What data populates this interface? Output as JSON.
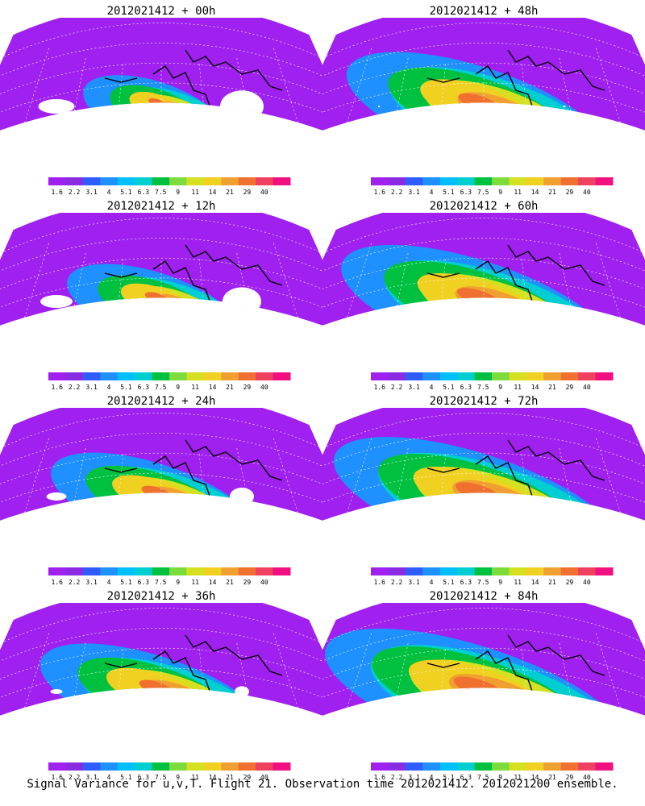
{
  "panels": [
    {
      "title": "2012021412 + 00h",
      "intensity": 0.15,
      "blank": 0.9
    },
    {
      "title": "2012021412 + 12h",
      "intensity": 0.3,
      "blank": 0.8
    },
    {
      "title": "2012021412 + 24h",
      "intensity": 0.45,
      "blank": 0.5
    },
    {
      "title": "2012021412 + 36h",
      "intensity": 0.55,
      "blank": 0.3
    },
    {
      "title": "2012021412 + 48h",
      "intensity": 0.7,
      "blank": 0.05
    },
    {
      "title": "2012021412 + 60h",
      "intensity": 0.75,
      "blank": 0.0
    },
    {
      "title": "2012021412 + 72h",
      "intensity": 0.82,
      "blank": 0.0
    },
    {
      "title": "2012021412 + 84h",
      "intensity": 0.9,
      "blank": 0.0
    }
  ],
  "colorbar": {
    "labels": [
      "1.6",
      "2.2",
      "3.1",
      "4",
      "5.1",
      "6.3",
      "7.5",
      "9",
      "11",
      "14",
      "21",
      "29",
      "40"
    ],
    "colors": [
      "#a020f0",
      "#8a2be2",
      "#2f5cff",
      "#1e90ff",
      "#00bfff",
      "#00ced1",
      "#00c040",
      "#7cdc3c",
      "#d4e020",
      "#f0d020",
      "#f0a030",
      "#f07030",
      "#f04060",
      "#f01080"
    ]
  },
  "caption": "Signal Variance for u,v,T. Flight 21. Observation time 2012021412. 2012021200 ensemble."
}
